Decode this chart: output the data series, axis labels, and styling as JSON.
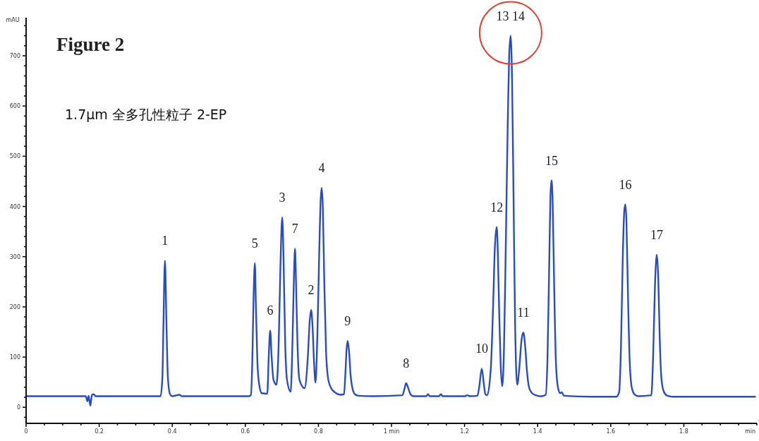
{
  "chart_data": {
    "type": "line",
    "title": "Figure 2",
    "subtitle": "1.7μm 全多孔性粒子 2-EP",
    "xlabel": "min",
    "ylabel": "mAU",
    "color": "#2a4cbf",
    "x": [
      0,
      0.05,
      0.1,
      0.163,
      0.168,
      0.171,
      0.176,
      0.18,
      0.185,
      0.19,
      0.3,
      0.368,
      0.373,
      0.376,
      0.38,
      0.384,
      0.388,
      0.394,
      0.4,
      0.42,
      0.426,
      0.5,
      0.61,
      0.615,
      0.619,
      0.622,
      0.626,
      0.629,
      0.633,
      0.638,
      0.645,
      0.66,
      0.664,
      0.668,
      0.672,
      0.677,
      0.685,
      0.691,
      0.696,
      0.701,
      0.705,
      0.709,
      0.714,
      0.724,
      0.729,
      0.733,
      0.736,
      0.739,
      0.743,
      0.748,
      0.762,
      0.771,
      0.776,
      0.78,
      0.784,
      0.788,
      0.792,
      0.797,
      0.802,
      0.806,
      0.809,
      0.812,
      0.816,
      0.821,
      0.827,
      0.835,
      0.845,
      0.86,
      0.87,
      0.874,
      0.877,
      0.88,
      0.884,
      0.888,
      0.894,
      0.9,
      0.91,
      0.95,
      1.03,
      1.036,
      1.04,
      1.045,
      1.052,
      1.06,
      1.095,
      1.1,
      1.105,
      1.13,
      1.135,
      1.14,
      1.2,
      1.207,
      1.215,
      1.235,
      1.24,
      1.247,
      1.253,
      1.257,
      1.262,
      1.272,
      1.278,
      1.283,
      1.288,
      1.291,
      1.295,
      1.299,
      1.303,
      1.308,
      1.313,
      1.318,
      1.322,
      1.326,
      1.33,
      1.334,
      1.338,
      1.344,
      1.35,
      1.356,
      1.361,
      1.366,
      1.371,
      1.377,
      1.385,
      1.395,
      1.41,
      1.422,
      1.427,
      1.432,
      1.435,
      1.438,
      1.441,
      1.445,
      1.45,
      1.456,
      1.462,
      1.466,
      1.472,
      1.55,
      1.615,
      1.623,
      1.628,
      1.633,
      1.637,
      1.64,
      1.643,
      1.647,
      1.652,
      1.658,
      1.666,
      1.675,
      1.711,
      1.716,
      1.721,
      1.726,
      1.73,
      1.734,
      1.739,
      1.746,
      1.755,
      1.77,
      1.85,
      1.995
    ],
    "values": [
      22,
      22,
      22,
      22,
      12,
      23,
      3,
      25,
      26,
      22,
      22,
      22,
      60,
      170,
      292,
      170,
      60,
      26,
      22,
      25,
      22,
      22,
      22,
      24,
      90,
      200,
      287,
      200,
      90,
      45,
      28,
      27,
      100,
      153,
      100,
      55,
      45,
      120,
      280,
      378,
      280,
      130,
      55,
      31,
      130,
      260,
      316,
      240,
      120,
      55,
      38,
      100,
      170,
      194,
      160,
      90,
      49,
      140,
      300,
      410,
      437,
      400,
      250,
      110,
      55,
      38,
      30,
      25,
      26,
      70,
      115,
      132,
      110,
      65,
      35,
      26,
      23,
      22,
      24,
      38,
      48,
      40,
      26,
      22,
      22,
      26,
      22,
      22,
      26,
      22,
      22,
      24,
      22,
      23,
      40,
      77,
      45,
      26,
      24,
      80,
      200,
      320,
      359,
      310,
      180,
      80,
      42,
      120,
      330,
      560,
      700,
      740,
      650,
      420,
      180,
      45,
      80,
      135,
      149,
      120,
      70,
      38,
      28,
      24,
      22,
      25,
      100,
      300,
      420,
      452,
      410,
      250,
      90,
      38,
      28,
      30,
      23,
      21,
      21,
      30,
      120,
      300,
      390,
      404,
      370,
      230,
      90,
      38,
      25,
      22,
      24,
      100,
      240,
      304,
      260,
      140,
      55,
      30,
      23,
      21,
      21,
      21
    ],
    "xlim": [
      0,
      2.0
    ],
    "ylim": [
      -32,
      776
    ],
    "xticks": [
      0,
      {
        "value": 0.05,
        "label": null
      },
      {
        "value": 0.1,
        "label": null
      },
      {
        "value": 0.15,
        "label": null
      },
      0.2,
      {
        "value": 0.25,
        "label": null
      },
      {
        "value": 0.3,
        "label": null
      },
      {
        "value": 0.35,
        "label": null
      },
      0.4,
      {
        "value": 0.45,
        "label": null
      },
      {
        "value": 0.5,
        "label": null
      },
      {
        "value": 0.55,
        "label": null
      },
      0.6,
      {
        "value": 0.65,
        "label": null
      },
      {
        "value": 0.7,
        "label": null
      },
      {
        "value": 0.75,
        "label": null
      },
      0.8,
      {
        "value": 0.85,
        "label": null
      },
      {
        "value": 0.9,
        "label": null
      },
      {
        "value": 0.95,
        "label": null
      },
      {
        "value": 1,
        "label": "1 min"
      },
      {
        "value": 1.05,
        "label": null
      },
      {
        "value": 1.1,
        "label": null
      },
      {
        "value": 1.15,
        "label": null
      },
      1.2,
      {
        "value": 1.25,
        "label": null
      },
      {
        "value": 1.3,
        "label": null
      },
      {
        "value": 1.35,
        "label": null
      },
      1.4,
      {
        "value": 1.45,
        "label": null
      },
      {
        "value": 1.5,
        "label": null
      },
      {
        "value": 1.55,
        "label": null
      },
      1.6,
      {
        "value": 1.65,
        "label": null
      },
      {
        "value": 1.7,
        "label": null
      },
      {
        "value": 1.75,
        "label": null
      },
      1.8,
      {
        "value": 1.85,
        "label": null
      },
      {
        "value": 1.9,
        "label": null
      },
      {
        "value": 1.95,
        "label": null
      },
      {
        "value": 2.0,
        "label": null
      }
    ],
    "yticks": [
      {
        "value": -20,
        "label": null
      },
      0,
      {
        "value": 20,
        "label": null
      },
      {
        "value": 40,
        "label": null
      },
      {
        "value": 60,
        "label": null
      },
      {
        "value": 80,
        "label": null
      },
      100,
      {
        "value": 120,
        "label": null
      },
      {
        "value": 140,
        "label": null
      },
      {
        "value": 160,
        "label": null
      },
      {
        "value": 180,
        "label": null
      },
      200,
      {
        "value": 220,
        "label": null
      },
      {
        "value": 240,
        "label": null
      },
      {
        "value": 260,
        "label": null
      },
      {
        "value": 280,
        "label": null
      },
      300,
      {
        "value": 320,
        "label": null
      },
      {
        "value": 340,
        "label": null
      },
      {
        "value": 360,
        "label": null
      },
      {
        "value": 380,
        "label": null
      },
      400,
      {
        "value": 420,
        "label": null
      },
      {
        "value": 440,
        "label": null
      },
      {
        "value": 460,
        "label": null
      },
      {
        "value": 480,
        "label": null
      },
      500,
      {
        "value": 520,
        "label": null
      },
      {
        "value": 540,
        "label": null
      },
      {
        "value": 560,
        "label": null
      },
      {
        "value": 580,
        "label": null
      },
      600,
      {
        "value": 620,
        "label": null
      },
      {
        "value": 640,
        "label": null
      },
      {
        "value": 660,
        "label": null
      },
      {
        "value": 680,
        "label": null
      },
      700,
      {
        "value": 720,
        "label": null
      },
      {
        "value": 740,
        "label": null
      },
      {
        "value": 760,
        "label": null
      }
    ],
    "annotations": [
      {
        "text": "1",
        "x": 0.38,
        "y": 292
      },
      {
        "text": "5",
        "x": 0.626,
        "y": 287
      },
      {
        "text": "6",
        "x": 0.668,
        "y": 153
      },
      {
        "text": "3",
        "x": 0.701,
        "y": 378
      },
      {
        "text": "7",
        "x": 0.736,
        "y": 316
      },
      {
        "text": "2",
        "x": 0.78,
        "y": 194
      },
      {
        "text": "4",
        "x": 0.809,
        "y": 437
      },
      {
        "text": "9",
        "x": 0.88,
        "y": 132
      },
      {
        "text": "8",
        "x": 1.04,
        "y": 48
      },
      {
        "text": "10",
        "x": 1.247,
        "y": 77
      },
      {
        "text": "12",
        "x": 1.288,
        "y": 359
      },
      {
        "text": "13 14",
        "x": 1.326,
        "y": 740
      },
      {
        "text": "11",
        "x": 1.361,
        "y": 149
      },
      {
        "text": "15",
        "x": 1.438,
        "y": 452
      },
      {
        "text": "16",
        "x": 1.64,
        "y": 404
      },
      {
        "text": "17",
        "x": 1.726,
        "y": 304
      }
    ]
  }
}
